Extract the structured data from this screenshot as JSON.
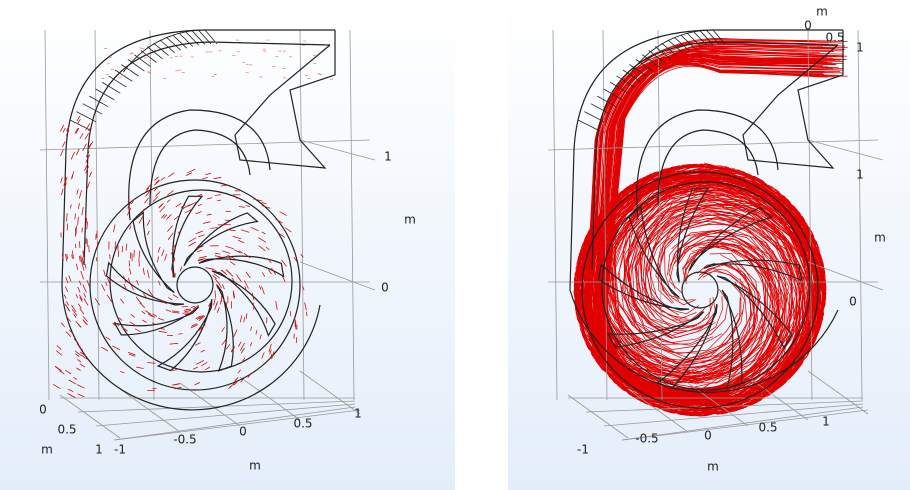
{
  "panels": [
    {
      "tick_labels": [
        "1",
        "m",
        "0",
        "0",
        "0.5",
        "1",
        "m",
        "-1",
        "-0.5",
        "0",
        "0.5",
        "1",
        "m"
      ]
    },
    {
      "tick_labels": [
        "m",
        "0",
        "0.5",
        "1",
        "1",
        "m",
        "0",
        "-1",
        "-0.5",
        "0",
        "0.5",
        "1",
        "m"
      ]
    }
  ]
}
